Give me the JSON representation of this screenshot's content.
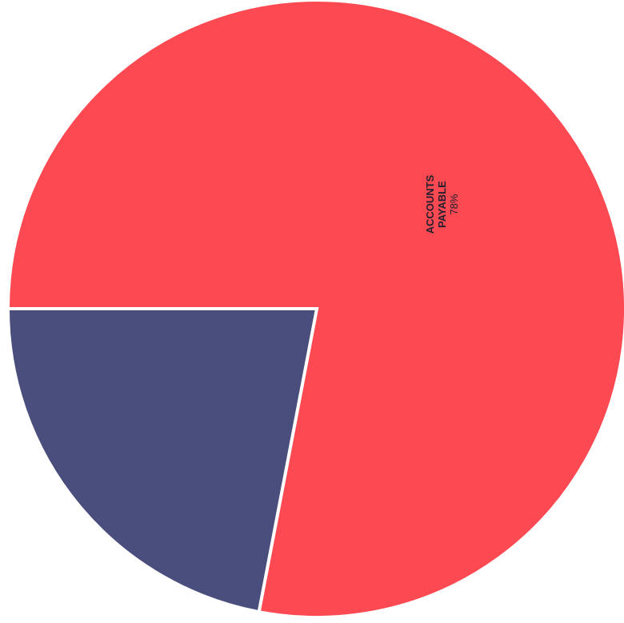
{
  "chart_data": {
    "type": "pie",
    "title": "",
    "slices": [
      {
        "label": "ACCOUNTS PAYABLE",
        "label_lines": [
          "ACCOUNTS",
          "PAYABLE"
        ],
        "value_label": "78%",
        "value": 78,
        "color": "#fd4a52"
      },
      {
        "label": "",
        "label_lines": [],
        "value_label": "",
        "value": 22,
        "color": "#4a4e7c"
      }
    ],
    "legend": "none",
    "data_labels": "inside, rotated vertical"
  }
}
